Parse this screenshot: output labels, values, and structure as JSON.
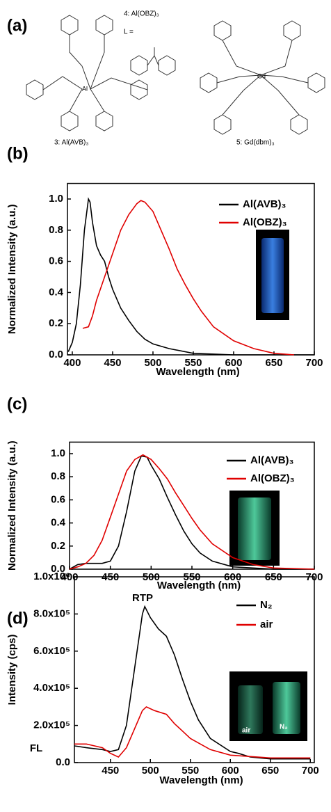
{
  "figure_a": {
    "label": "(a)",
    "compound_4": "4: Al(OBZ)₃",
    "ligand": "L =",
    "compound_3": "3: Al(AVB)₃",
    "compound_5": "5: Gd(dbm)₃",
    "metal_al": "Al",
    "metal_gd": "Gd"
  },
  "chart_data": [
    {
      "type": "line",
      "label": "(b)",
      "x_label": "Wavelength (nm)",
      "y_label": "Normalized Intensity (a.u.)",
      "legend": "upper right",
      "xlim": [
        394,
        700
      ],
      "ylim": [
        0,
        1.1
      ],
      "xticks": [
        400,
        450,
        500,
        550,
        600,
        650,
        700
      ],
      "yticks": [
        {
          "value": 0,
          "label": "0.0"
        },
        0.2,
        0.4,
        0.6,
        0.8,
        {
          "value": 1,
          "label": "1.0"
        }
      ],
      "series": [
        {
          "name": "Al(AVB)₃",
          "color": "#000000",
          "x": [
            395,
            400,
            405,
            410,
            415,
            420,
            422,
            425,
            430,
            435,
            440,
            445,
            450,
            460,
            470,
            480,
            490,
            500,
            520,
            550,
            600,
            700
          ],
          "values": [
            0.02,
            0.08,
            0.2,
            0.45,
            0.8,
            1.0,
            0.98,
            0.85,
            0.7,
            0.64,
            0.6,
            0.5,
            0.42,
            0.3,
            0.22,
            0.15,
            0.1,
            0.07,
            0.04,
            0.01,
            0,
            0
          ]
        },
        {
          "name": "Al(OBZ)₃",
          "color": "#e00000",
          "x": [
            413,
            420,
            425,
            430,
            440,
            450,
            460,
            470,
            480,
            485,
            490,
            500,
            510,
            520,
            530,
            540,
            550,
            560,
            575,
            600,
            625,
            650,
            675
          ],
          "values": [
            0.17,
            0.18,
            0.25,
            0.35,
            0.5,
            0.65,
            0.8,
            0.9,
            0.97,
            0.99,
            0.98,
            0.92,
            0.8,
            0.68,
            0.55,
            0.45,
            0.36,
            0.28,
            0.18,
            0.09,
            0.04,
            0.01,
            0
          ]
        }
      ]
    },
    {
      "type": "line",
      "label": "(c)",
      "x_label": "Wavelength (nm)",
      "y_label": "Normalized Intensity (a.u.)",
      "legend": "upper right",
      "xlim": [
        400,
        700
      ],
      "ylim": [
        0,
        1.1
      ],
      "xticks": [
        400,
        450,
        500,
        550,
        600,
        650,
        700
      ],
      "yticks": [
        {
          "value": 0,
          "label": "0.0"
        },
        0.2,
        0.4,
        0.6,
        0.8,
        {
          "value": 1,
          "label": "1.0"
        }
      ],
      "series": [
        {
          "name": "Al(AVB)₃",
          "color": "#000000",
          "x": [
            400,
            410,
            420,
            440,
            450,
            460,
            470,
            480,
            488,
            495,
            500,
            510,
            520,
            530,
            540,
            550,
            560,
            575,
            600,
            650,
            700
          ],
          "values": [
            0,
            0.04,
            0.05,
            0.05,
            0.07,
            0.2,
            0.5,
            0.85,
            0.98,
            0.97,
            0.9,
            0.78,
            0.62,
            0.47,
            0.33,
            0.22,
            0.14,
            0.07,
            0.02,
            0,
            0
          ]
        },
        {
          "name": "Al(OBZ)₃",
          "color": "#e00000",
          "x": [
            400,
            410,
            420,
            430,
            440,
            450,
            460,
            470,
            480,
            490,
            500,
            510,
            520,
            530,
            540,
            550,
            560,
            575,
            600,
            625,
            650,
            700
          ],
          "values": [
            0,
            0.02,
            0.05,
            0.12,
            0.25,
            0.45,
            0.65,
            0.85,
            0.95,
            0.99,
            0.95,
            0.87,
            0.78,
            0.66,
            0.55,
            0.44,
            0.34,
            0.22,
            0.1,
            0.04,
            0.01,
            0
          ]
        }
      ]
    },
    {
      "type": "line",
      "label": "(d)",
      "x_label": "Wavelength (nm)",
      "y_label": "Intensity (cps)",
      "legend": "upper right",
      "xlim": [
        405,
        705
      ],
      "ylim": [
        0,
        1000000
      ],
      "xticks": [
        450,
        500,
        550,
        600,
        650,
        700
      ],
      "yticks": [
        {
          "value": 0,
          "label": "0.0"
        },
        {
          "value": 200000,
          "label": "2.0x10⁵"
        },
        {
          "value": 400000,
          "label": "4.0x10⁵"
        },
        {
          "value": 600000,
          "label": "6.0x10⁵"
        },
        {
          "value": 800000,
          "label": "8.0x10⁵"
        },
        {
          "value": 1000000,
          "label": "1.0x10⁶"
        }
      ],
      "annotations": [
        "RTP",
        "FL"
      ],
      "inset_labels": [
        "air",
        "N₂"
      ],
      "series": [
        {
          "name": "N₂",
          "color": "#000000",
          "x": [
            405,
            420,
            440,
            450,
            460,
            470,
            480,
            490,
            493,
            500,
            510,
            520,
            530,
            540,
            550,
            560,
            575,
            600,
            610,
            625,
            650,
            700
          ],
          "values": [
            90000,
            80000,
            70000,
            60000,
            70000,
            200000,
            500000,
            800000,
            840000,
            780000,
            720000,
            680000,
            580000,
            450000,
            330000,
            230000,
            130000,
            60000,
            50000,
            30000,
            20000,
            20000
          ]
        },
        {
          "name": "air",
          "color": "#e00000",
          "x": [
            405,
            420,
            440,
            450,
            460,
            470,
            480,
            490,
            495,
            505,
            520,
            530,
            540,
            550,
            575,
            600,
            650,
            700
          ],
          "values": [
            100000,
            100000,
            80000,
            50000,
            30000,
            80000,
            180000,
            280000,
            300000,
            280000,
            260000,
            210000,
            170000,
            130000,
            70000,
            40000,
            25000,
            25000
          ]
        }
      ]
    }
  ]
}
